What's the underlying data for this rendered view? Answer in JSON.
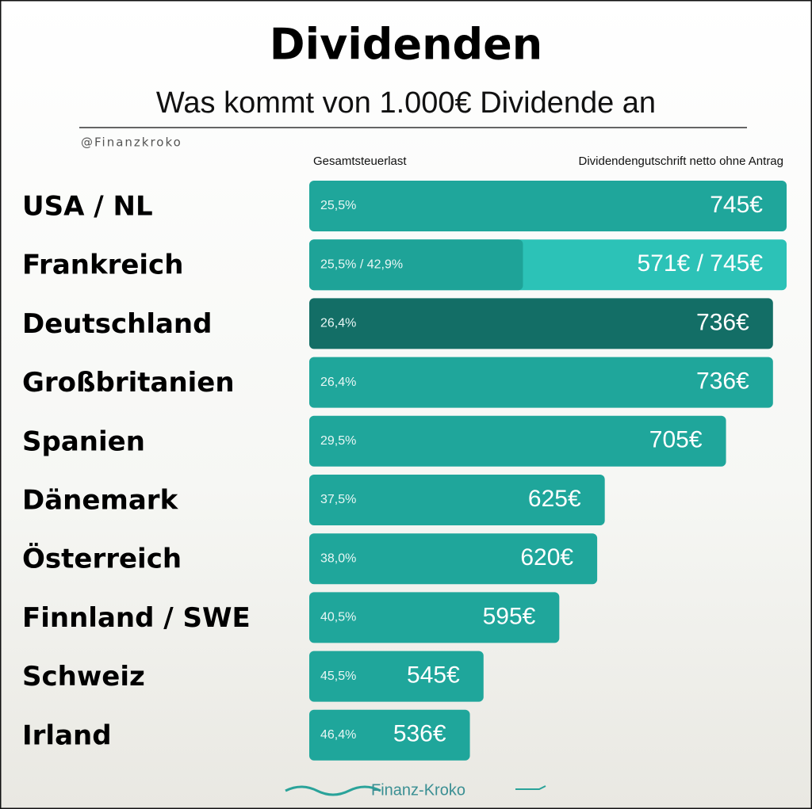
{
  "chart_data": {
    "type": "hbar",
    "title": "Dividenden",
    "subtitle": "Was kommt von 1.000€ Dividende an",
    "handle": "@Finanzkroko",
    "column_left": "Gesamtsteuerlast",
    "column_right": "Dividendengutschrift netto ohne Antrag",
    "logo": "Finanz-Kroko",
    "categories": [
      "USA / NL",
      "Frankreich",
      "Deutschland",
      "Großbritanien",
      "Spanien",
      "Dänemark",
      "Österreich",
      "Finnland / SWE",
      "Schweiz",
      "Irland"
    ],
    "tax_labels": [
      "25,5%",
      "25,5% / 42,9%",
      "26,4%",
      "26,4%",
      "29,5%",
      "37,5%",
      "38,0%",
      "40,5%",
      "45,5%",
      "46,4%"
    ],
    "values": [
      745,
      745,
      736,
      736,
      705,
      625,
      620,
      595,
      545,
      536
    ],
    "values_low": [
      null,
      571,
      null,
      null,
      null,
      null,
      null,
      null,
      null,
      null
    ],
    "value_labels": [
      "745€",
      "571€ / 745€",
      "736€",
      "736€",
      "705€",
      "625€",
      "620€",
      "595€",
      "545€",
      "536€"
    ],
    "colors": [
      "#1fa69b",
      "#2cc2b7",
      "#136e66",
      "#1fa69b",
      "#1fa69b",
      "#1fa69b",
      "#1fa69b",
      "#1fa69b",
      "#1fa69b",
      "#1fa69b"
    ],
    "low_color": "#1ea398",
    "xlim": [
      430,
      745
    ]
  }
}
